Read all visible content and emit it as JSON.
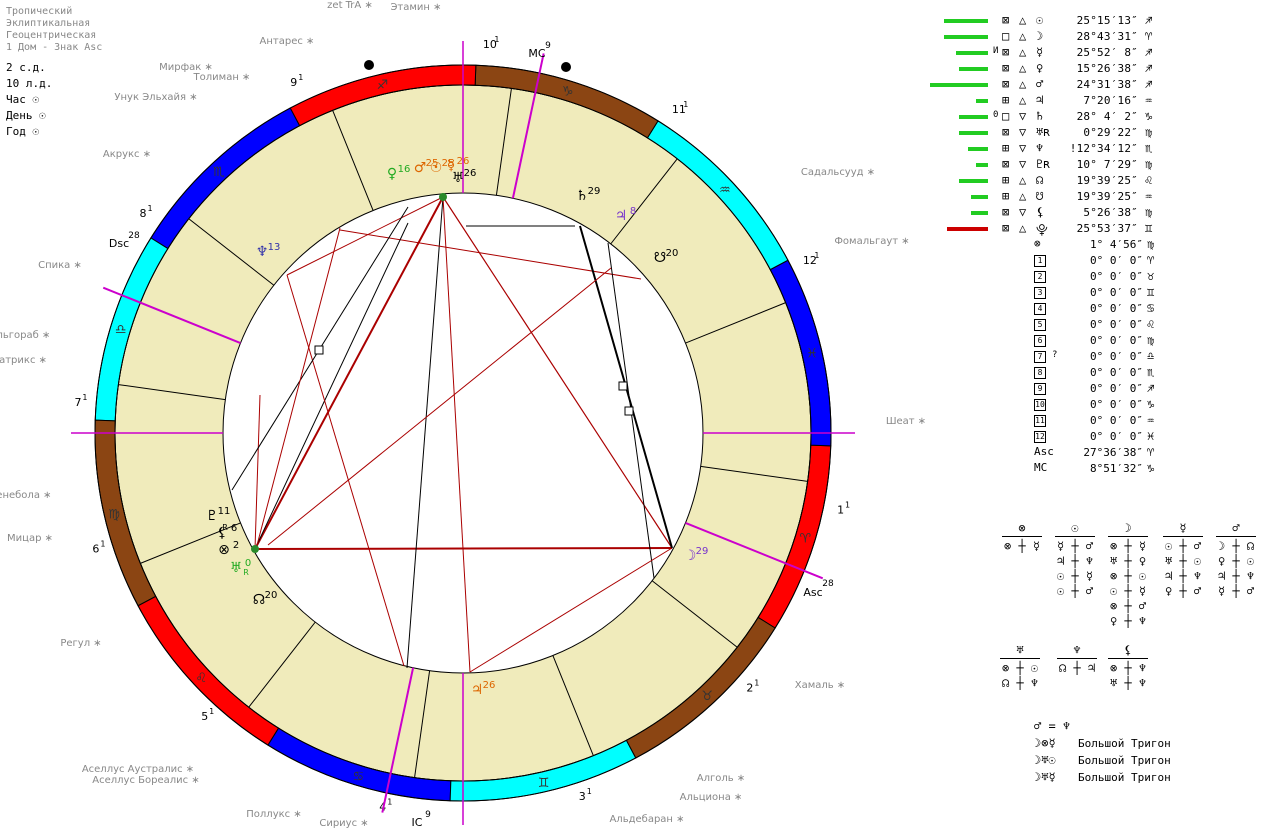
{
  "header": {
    "lines": [
      "Тропический",
      "Эклиптикальная",
      "Геоцентрическая",
      "1 Дом - Знак Asc"
    ],
    "stats": [
      "2 с.д.",
      "10 л.д.",
      "Час ☉",
      "День ☉",
      "Год ☉"
    ]
  },
  "colors": {
    "ring_fire": "#ff0000",
    "ring_earth": "#8b4513",
    "ring_air": "#00ffff",
    "ring_water": "#0000ff",
    "house_fill": "#f0ebbb",
    "aspect_red": "#aa0000",
    "axis_magenta": "#cc00cc",
    "bar_green": "#22cc22",
    "bar_red": "#cc0000",
    "planet_green": "#22aa22",
    "planet_orange": "#dd6600",
    "planet_blue": "#3333aa",
    "planet_purple": "#7733cc"
  },
  "zodiac_signs": [
    {
      "glyph": "♈",
      "element": "fire"
    },
    {
      "glyph": "♉",
      "element": "earth"
    },
    {
      "glyph": "♊",
      "element": "air"
    },
    {
      "glyph": "♋",
      "element": "water"
    },
    {
      "glyph": "♌",
      "element": "fire"
    },
    {
      "glyph": "♍",
      "element": "earth"
    },
    {
      "glyph": "♎",
      "element": "air"
    },
    {
      "glyph": "♏",
      "element": "water"
    },
    {
      "glyph": "♐",
      "element": "fire"
    },
    {
      "glyph": "♑",
      "element": "earth"
    },
    {
      "glyph": "♒",
      "element": "air"
    },
    {
      "glyph": "♓",
      "element": "water"
    }
  ],
  "house_labels": [
    "1",
    "2",
    "3",
    "4",
    "5",
    "6",
    "7",
    "8",
    "9",
    "10",
    "11",
    "12"
  ],
  "house_sup": "1",
  "axes": {
    "asc_label": "Asc",
    "asc_deg": "28",
    "dsc_label": "Dsc",
    "dsc_deg": "28",
    "mc_label": "MC",
    "mc_deg": "9",
    "ic_label": "IC",
    "ic_deg": "9"
  },
  "stars": [
    "zet TrA",
    "Этамин",
    "Антарес",
    "Мирфак",
    "Толиман",
    "Унук Эльхайя",
    "Акрукс",
    "Спика",
    "Альгораб",
    "Гатрикс",
    "Денебола",
    "Мицар",
    "Регул",
    "Аселлус Аустралис",
    "Аселлус Бореалис",
    "Поллукс",
    "Сириус",
    "Альдебаран",
    "Альциона",
    "Алголь",
    "Хамаль",
    "Шеат",
    "Фомальгаут",
    "Садальсууд"
  ],
  "chart_planets": [
    {
      "glyph": "♀",
      "deg": "16",
      "color": "planet_green"
    },
    {
      "glyph": "♂",
      "deg": "25",
      "color": "planet_orange"
    },
    {
      "glyph": "☉",
      "deg": "25",
      "color": "planet_orange"
    },
    {
      "glyph": "☿",
      "deg": "26",
      "color": "planet_orange"
    },
    {
      "glyph": "♅",
      "deg": "26",
      "color": "black"
    },
    {
      "glyph": "♆",
      "deg": "13",
      "color": "planet_blue"
    },
    {
      "glyph": "♄",
      "deg": "29",
      "color": "black"
    },
    {
      "glyph": "♃",
      "deg": "8",
      "color": "planet_purple"
    },
    {
      "glyph": "☋",
      "deg": "20",
      "color": "black"
    },
    {
      "glyph": "♇",
      "deg": "11",
      "color": "black"
    },
    {
      "glyph": "⚸",
      "deg": "6",
      "color": "black"
    },
    {
      "glyph": "⊗",
      "deg": "2",
      "color": "black"
    },
    {
      "glyph": "♅",
      "deg": "0",
      "color": "planet_green"
    },
    {
      "glyph": "☊",
      "deg": "20",
      "color": "black"
    },
    {
      "glyph": "♃",
      "deg": "26",
      "color": "planet_orange"
    },
    {
      "glyph": "☽",
      "deg": "29",
      "color": "planet_purple"
    }
  ],
  "retro_mark": "R",
  "planet_table": [
    {
      "glyph": "☉",
      "deg": "25°15′13″",
      "sign": "♐",
      "flag": "",
      "strength": 0.75,
      "bar_color": "bar_green",
      "box1": "⊠",
      "box2": "△"
    },
    {
      "glyph": "☽",
      "deg": "28°43′31″",
      "sign": "♈",
      "flag": "",
      "strength": 0.75,
      "bar_color": "bar_green",
      "box1": "□",
      "box2": "△"
    },
    {
      "glyph": "☿",
      "deg": "25°52′ 8″",
      "sign": "♐",
      "flag": "И",
      "strength": 0.55,
      "bar_color": "bar_green",
      "box1": "⊠",
      "box2": "△"
    },
    {
      "glyph": "♀",
      "deg": "15°26′38″",
      "sign": "♐",
      "flag": "",
      "strength": 0.5,
      "bar_color": "bar_green",
      "box1": "⊠",
      "box2": "△"
    },
    {
      "glyph": "♂",
      "deg": "24°31′38″",
      "sign": "♐",
      "flag": "",
      "strength": 1.0,
      "bar_color": "bar_green",
      "box1": "⊠",
      "box2": "△"
    },
    {
      "glyph": "♃",
      "deg": "7°20′16″",
      "sign": "♒",
      "flag": "",
      "strength": 0.2,
      "bar_color": "bar_green",
      "box1": "⊞",
      "box2": "△"
    },
    {
      "glyph": "♄",
      "deg": "28° 4′ 2″",
      "sign": "♑",
      "flag": "0",
      "strength": 0.5,
      "bar_color": "bar_green",
      "box1": "□",
      "box2": "▽"
    },
    {
      "glyph": "♅ʀ",
      "deg": "0°29′22″",
      "sign": "♍",
      "flag": "",
      "strength": 0.5,
      "bar_color": "bar_green",
      "box1": "⊠",
      "box2": "▽"
    },
    {
      "glyph": "♆",
      "deg": "!12°34′12″",
      "sign": "♏",
      "flag": "",
      "strength": 0.35,
      "bar_color": "bar_green",
      "box1": "⊞",
      "box2": "▽"
    },
    {
      "glyph": "♇ʀ",
      "deg": "10° 7′29″",
      "sign": "♍",
      "flag": "",
      "strength": 0.2,
      "bar_color": "bar_green",
      "box1": "⊠",
      "box2": "▽"
    },
    {
      "glyph": "☊",
      "deg": "19°39′25″",
      "sign": "♌",
      "flag": "",
      "strength": 0.5,
      "bar_color": "bar_green",
      "box1": "⊞",
      "box2": "△"
    },
    {
      "glyph": "☋",
      "deg": "19°39′25″",
      "sign": "♒",
      "flag": "",
      "strength": 0.3,
      "bar_color": "bar_green",
      "box1": "⊞",
      "box2": "△"
    },
    {
      "glyph": "⚸",
      "deg": "5°26′38″",
      "sign": "♍",
      "flag": "",
      "strength": 0.3,
      "bar_color": "bar_green",
      "box1": "⊠",
      "box2": "▽"
    },
    {
      "glyph": "⯓",
      "deg": "25°53′37″",
      "sign": "♊",
      "flag": "",
      "strength": 0.7,
      "bar_color": "bar_red",
      "box1": "⊠",
      "box2": "△"
    }
  ],
  "point_table": [
    {
      "label": "⊗",
      "deg": "1° 4′56″",
      "sign": "♍",
      "flag": ""
    },
    {
      "label": "1",
      "deg": "0° 0′ 0″",
      "sign": "♈",
      "flag": ""
    },
    {
      "label": "2",
      "deg": "0° 0′ 0″",
      "sign": "♉",
      "flag": ""
    },
    {
      "label": "3",
      "deg": "0° 0′ 0″",
      "sign": "♊",
      "flag": ""
    },
    {
      "label": "4",
      "deg": "0° 0′ 0″",
      "sign": "♋",
      "flag": ""
    },
    {
      "label": "5",
      "deg": "0° 0′ 0″",
      "sign": "♌",
      "flag": ""
    },
    {
      "label": "6",
      "deg": "0° 0′ 0″",
      "sign": "♍",
      "flag": ""
    },
    {
      "label": "7",
      "deg": "0° 0′ 0″",
      "sign": "♎",
      "flag": "?"
    },
    {
      "label": "8",
      "deg": "0° 0′ 0″",
      "sign": "♏",
      "flag": ""
    },
    {
      "label": "9",
      "deg": "0° 0′ 0″",
      "sign": "♐",
      "flag": ""
    },
    {
      "label": "10",
      "deg": "0° 0′ 0″",
      "sign": "♑",
      "flag": ""
    },
    {
      "label": "11",
      "deg": "0° 0′ 0″",
      "sign": "♒",
      "flag": ""
    },
    {
      "label": "12",
      "deg": "0° 0′ 0″",
      "sign": "♓",
      "flag": ""
    },
    {
      "label": "Asc",
      "deg": "27°36′38″",
      "sign": "♈",
      "flag": ""
    },
    {
      "label": "MC",
      "deg": "8°51′32″",
      "sign": "♑",
      "flag": ""
    }
  ],
  "dispositor_blocks": [
    {
      "head": "⊗",
      "rows": [
        "⊗ ┼ ☿"
      ]
    },
    {
      "head": "☉",
      "rows": [
        "☿ ┼ ♂",
        "♃ ┼ ♆",
        "☉ ┼ ☿",
        "☉ ┼ ♂"
      ]
    },
    {
      "head": "☽",
      "rows": [
        "⊗ ┼ ☿",
        "♅ ┼ ♀",
        "⊗ ┼ ☉",
        "☉ ┼ ☿",
        "⊗ ┼ ♂",
        "♀ ┼ ♆"
      ]
    },
    {
      "head": "☿",
      "rows": [
        "☉ ┼ ♂",
        "♅ ┼ ☉",
        "♃ ┼ ♆",
        "♀ ┼ ♂"
      ]
    },
    {
      "head": "♂",
      "rows": [
        "☽ ┼ ☊",
        "♀ ┼ ☉",
        "♃ ┼ ♆",
        "☿ ┼ ♂"
      ]
    },
    {
      "head": "♅",
      "rows": [
        "⊗ ┼ ☉",
        "☊ ┼ ♆"
      ]
    },
    {
      "head": "♆",
      "rows": [
        "☊ ┼ ♃"
      ]
    },
    {
      "head": "⚸",
      "rows": [
        "⊗ ┼ ♆",
        "♅ ┼ ♆"
      ]
    }
  ],
  "aspect_notes": [
    {
      "glyphs": "♂ = ♆",
      "text": ""
    },
    {
      "glyphs": "☽⊗☿",
      "text": "Большой Тригон"
    },
    {
      "glyphs": "☽♅☉",
      "text": "Большой Тригон"
    },
    {
      "glyphs": "☽♅☿",
      "text": "Большой Тригон"
    }
  ]
}
